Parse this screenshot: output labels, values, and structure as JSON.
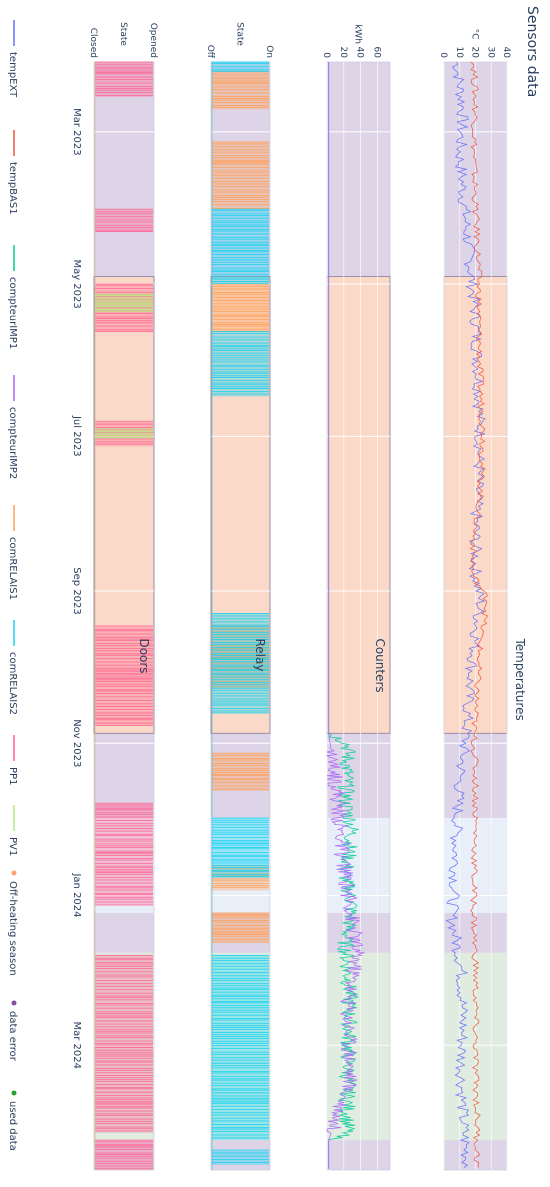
{
  "chart_data": {
    "type": "line",
    "title": "Sensors data",
    "orientation": "rotated-90-clockwise",
    "time_axis": {
      "range": [
        "2023-02-01",
        "2024-04-20"
      ],
      "ticks": [
        {
          "date": "2023-03-01",
          "label": "Mar 2023"
        },
        {
          "date": "2023-05-01",
          "label": "May 2023"
        },
        {
          "date": "2023-07-01",
          "label": "Jul 2023"
        },
        {
          "date": "2023-09-01",
          "label": "Sep 2023"
        },
        {
          "date": "2023-11-01",
          "label": "Nov 2023"
        },
        {
          "date": "2024-01-01",
          "label": "Jan 2024"
        },
        {
          "date": "2024-03-01",
          "label": "Mar 2024"
        }
      ]
    },
    "periods": [
      {
        "start": "2023-02-01",
        "end": "2023-04-28",
        "type": "data error"
      },
      {
        "start": "2023-04-28",
        "end": "2023-10-28",
        "type": "Off-heating season"
      },
      {
        "start": "2023-10-28",
        "end": "2023-12-01",
        "type": "data error"
      },
      {
        "start": "2023-12-01",
        "end": "2024-01-08",
        "type": "normal"
      },
      {
        "start": "2024-01-08",
        "end": "2024-01-24",
        "type": "data error"
      },
      {
        "start": "2024-01-24",
        "end": "2024-04-08",
        "type": "used data"
      },
      {
        "start": "2024-04-08",
        "end": "2024-04-20",
        "type": "data error"
      }
    ],
    "panels": [
      {
        "id": "temperatures",
        "title": "Temperatures",
        "unit": "°C",
        "range": [
          0,
          40
        ],
        "ticks": [
          "0",
          "10",
          "20",
          "30",
          "40"
        ],
        "series": [
          {
            "name": "tempEXT",
            "color": "#636efa",
            "points": [
              [
                "2023-02-01",
                8
              ],
              [
                "2023-02-20",
                12
              ],
              [
                "2023-03-10",
                10
              ],
              [
                "2023-04-01",
                13
              ],
              [
                "2023-04-25",
                17
              ],
              [
                "2023-05-15",
                20
              ],
              [
                "2023-06-10",
                22
              ],
              [
                "2023-07-01",
                23
              ],
              [
                "2023-07-25",
                21
              ],
              [
                "2023-08-10",
                20
              ],
              [
                "2023-08-25",
                20
              ],
              [
                "2023-09-05",
                23
              ],
              [
                "2023-09-20",
                20
              ],
              [
                "2023-10-10",
                16
              ],
              [
                "2023-10-28",
                14
              ],
              [
                "2023-11-15",
                10
              ],
              [
                "2023-12-05",
                8
              ],
              [
                "2023-12-25",
                7
              ],
              [
                "2024-01-10",
                5
              ],
              [
                "2024-01-30",
                11
              ],
              [
                "2024-02-20",
                12
              ],
              [
                "2024-03-10",
                11
              ],
              [
                "2024-03-30",
                12
              ],
              [
                "2024-04-20",
                15
              ]
            ]
          },
          {
            "name": "tempBAS1",
            "color": "#ef553b",
            "points": [
              [
                "2023-02-01",
                19
              ],
              [
                "2023-02-20",
                20
              ],
              [
                "2023-03-10",
                19
              ],
              [
                "2023-04-01",
                20
              ],
              [
                "2023-04-25",
                22
              ],
              [
                "2023-05-15",
                22
              ],
              [
                "2023-06-10",
                23
              ],
              [
                "2023-07-01",
                25
              ],
              [
                "2023-07-25",
                23
              ],
              [
                "2023-08-10",
                19
              ],
              [
                "2023-08-25",
                18
              ],
              [
                "2023-09-05",
                28
              ],
              [
                "2023-09-20",
                23
              ],
              [
                "2023-10-10",
                21
              ],
              [
                "2023-10-28",
                19
              ],
              [
                "2023-11-15",
                20
              ],
              [
                "2023-12-05",
                20
              ],
              [
                "2023-12-25",
                19
              ],
              [
                "2024-01-10",
                19
              ],
              [
                "2024-01-30",
                20
              ],
              [
                "2024-02-20",
                20
              ],
              [
                "2024-03-10",
                20
              ],
              [
                "2024-03-30",
                21
              ],
              [
                "2024-04-20",
                21
              ]
            ]
          }
        ]
      },
      {
        "id": "counters",
        "title": "Counters",
        "unit": "kWh",
        "range": [
          0,
          75
        ],
        "ticks": [
          "0",
          "20",
          "40",
          "60"
        ],
        "series": [
          {
            "name": "compteurIMP1",
            "color": "#00cc96",
            "points": [
              [
                "2023-02-01",
                2
              ],
              [
                "2023-10-28",
                2
              ],
              [
                "2023-11-01",
                25
              ],
              [
                "2023-11-25",
                22
              ],
              [
                "2023-12-05",
                30
              ],
              [
                "2023-12-25",
                22
              ],
              [
                "2024-01-05",
                30
              ],
              [
                "2024-01-20",
                22
              ],
              [
                "2024-02-10",
                27
              ],
              [
                "2024-03-10",
                25
              ],
              [
                "2024-04-05",
                24
              ],
              [
                "2024-04-08",
                2
              ],
              [
                "2024-04-20",
                2
              ]
            ]
          },
          {
            "name": "compteurIMP2",
            "color": "#ab63fa",
            "points": [
              [
                "2023-02-01",
                2
              ],
              [
                "2023-10-28",
                2
              ],
              [
                "2023-11-20",
                12
              ],
              [
                "2023-12-15",
                18
              ],
              [
                "2024-01-10",
                30
              ],
              [
                "2024-01-25",
                35
              ],
              [
                "2024-02-15",
                25
              ],
              [
                "2024-03-15",
                28
              ],
              [
                "2024-04-08",
                2
              ],
              [
                "2024-04-20",
                2
              ]
            ]
          }
        ]
      },
      {
        "id": "relay",
        "title": "Relay",
        "unit": "State",
        "range": [
          0,
          1
        ],
        "ticks": [
          "Off",
          "On"
        ],
        "series": [
          {
            "name": "comRELAIS1",
            "color": "#ffa15a",
            "segments": [
              [
                "2023-02-05",
                "2023-02-20"
              ],
              [
                "2023-03-05",
                "2023-04-01"
              ],
              [
                "2023-05-01",
                "2023-05-20"
              ],
              [
                "2023-09-15",
                "2023-10-10"
              ],
              [
                "2023-11-05",
                "2023-11-20"
              ],
              [
                "2023-12-20",
                "2023-12-30"
              ],
              [
                "2024-01-08",
                "2024-01-20"
              ]
            ]
          },
          {
            "name": "comRELAIS2",
            "color": "#19d3f3",
            "segments": [
              [
                "2023-02-01",
                "2023-02-05"
              ],
              [
                "2023-04-01",
                "2023-05-01"
              ],
              [
                "2023-05-20",
                "2023-06-15"
              ],
              [
                "2023-09-10",
                "2023-10-20"
              ],
              [
                "2023-12-01",
                "2023-12-25"
              ],
              [
                "2024-01-25",
                "2024-04-08"
              ],
              [
                "2024-04-12",
                "2024-04-18"
              ]
            ]
          }
        ]
      },
      {
        "id": "doors",
        "title": "Doors",
        "unit": "State",
        "range": [
          0,
          1
        ],
        "ticks": [
          "Closed",
          "Opened"
        ],
        "series": [
          {
            "name": "PP1",
            "color": "#ff6692",
            "segments": [
              [
                "2023-02-01",
                "2023-02-15"
              ],
              [
                "2023-04-01",
                "2023-04-10"
              ],
              [
                "2023-05-01",
                "2023-05-20"
              ],
              [
                "2023-06-25",
                "2023-07-05"
              ],
              [
                "2023-09-15",
                "2023-10-25"
              ],
              [
                "2023-11-25",
                "2024-01-05"
              ],
              [
                "2024-01-25",
                "2024-04-05"
              ],
              [
                "2024-04-08",
                "2024-04-20"
              ]
            ]
          },
          {
            "name": "PV1",
            "color": "#b6e880",
            "segments": [
              [
                "2023-05-05",
                "2023-05-12"
              ],
              [
                "2023-06-28",
                "2023-07-02"
              ]
            ]
          }
        ]
      }
    ],
    "legend": {
      "placement": "left",
      "entries": [
        {
          "label": "tempEXT",
          "color": "#636efa",
          "kind": "line"
        },
        {
          "label": "tempBAS1",
          "color": "#ef553b",
          "kind": "line"
        },
        {
          "label": "compteurIMP1",
          "color": "#00cc96",
          "kind": "line"
        },
        {
          "label": "compteurIMP2",
          "color": "#ab63fa",
          "kind": "line"
        },
        {
          "label": "comRELAIS1",
          "color": "#ffa15a",
          "kind": "line"
        },
        {
          "label": "comRELAIS2",
          "color": "#19d3f3",
          "kind": "line"
        },
        {
          "label": "PP1",
          "color": "#ff6692",
          "kind": "line"
        },
        {
          "label": "PV1",
          "color": "#b6e880",
          "kind": "line"
        },
        {
          "label": "Off-heating season",
          "color": "#fe9f6d",
          "kind": "marker"
        },
        {
          "label": "data error",
          "color": "#7e4fa3",
          "kind": "marker"
        },
        {
          "label": "used data",
          "color": "#2ca02c",
          "kind": "marker"
        }
      ]
    },
    "period_colors": {
      "data error": "#d9cfe6",
      "Off-heating season": "#fbd5c2",
      "used data": "#dceadb",
      "normal": "#e6edf8"
    }
  }
}
